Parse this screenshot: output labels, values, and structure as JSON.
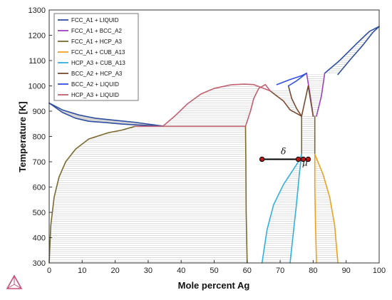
{
  "chart_data": {
    "type": "line",
    "xlabel": "Mole percent Ag",
    "ylabel": "Temperature [K]",
    "xlim": [
      0,
      100
    ],
    "ylim": [
      300,
      1300
    ],
    "x_ticks": [
      0,
      10,
      20,
      30,
      40,
      50,
      60,
      70,
      80,
      90,
      100
    ],
    "y_ticks": [
      300,
      400,
      500,
      600,
      700,
      800,
      900,
      1000,
      1100,
      1200,
      1300
    ],
    "legend_position": "top-left",
    "series": [
      {
        "name": "FCC_A1 + LIQUID",
        "color": "#2f4fa0",
        "segments": [
          [
            [
              0,
              932
            ],
            [
              4,
              905
            ],
            [
              9,
              885
            ],
            [
              14,
              872
            ],
            [
              20,
              864
            ],
            [
              26,
              856
            ],
            [
              34.5,
              841
            ]
          ],
          [
            [
              0,
              932
            ],
            [
              4,
              895
            ],
            [
              8,
              872
            ],
            [
              12,
              860
            ],
            [
              17,
              855
            ],
            [
              22,
              849
            ],
            [
              26,
              846
            ],
            [
              34.5,
              841
            ]
          ],
          [
            [
              87.5,
              1045
            ],
            [
              91,
              1100
            ],
            [
              95,
              1160
            ],
            [
              98,
              1210
            ],
            [
              100,
              1235
            ]
          ],
          [
            [
              83.5,
              1050
            ],
            [
              88,
              1100
            ],
            [
              93,
              1165
            ],
            [
              97,
              1215
            ],
            [
              100,
              1235
            ]
          ]
        ]
      },
      {
        "name": "FCC_A1 + BCC_A2",
        "color": "#a040c0",
        "segments": [
          [
            [
              78,
              1050
            ],
            [
              79,
              970
            ],
            [
              80,
              880
            ]
          ],
          [
            [
              83.5,
              1050
            ],
            [
              82.5,
              960
            ],
            [
              81,
              880
            ]
          ]
        ]
      },
      {
        "name": "FCC_A1 + HCP_A3",
        "color": "#7a6a30",
        "segments": [
          [
            [
              0,
              300
            ],
            [
              0.5,
              450
            ],
            [
              1.5,
              560
            ],
            [
              3,
              640
            ],
            [
              5,
              700
            ],
            [
              8,
              750
            ],
            [
              12,
              790
            ],
            [
              18,
              815
            ],
            [
              22,
              825
            ],
            [
              26,
              840
            ]
          ],
          [
            [
              59.5,
              840
            ],
            [
              59.6,
              700
            ],
            [
              59.7,
              500
            ],
            [
              60,
              300
            ]
          ],
          [
            [
              76.5,
              880
            ],
            [
              76.5,
              760
            ],
            [
              76.5,
              730
            ]
          ],
          [
            [
              80.5,
              880
            ],
            [
              80.5,
              760
            ],
            [
              80.5,
              730
            ]
          ]
        ]
      },
      {
        "name": "FCC_A1 + CUB_A13",
        "color": "#f0a020",
        "segments": [
          [
            [
              80.5,
              730
            ],
            [
              80.5,
              600
            ],
            [
              80.7,
              450
            ],
            [
              81,
              300
            ]
          ],
          [
            [
              80.5,
              730
            ],
            [
              83,
              650
            ],
            [
              85,
              560
            ],
            [
              86.5,
              450
            ],
            [
              87.5,
              300
            ]
          ]
        ]
      },
      {
        "name": "HCP_A3 + CUB_A13",
        "color": "#30b0e0",
        "segments": [
          [
            [
              64.5,
              300
            ],
            [
              66,
              430
            ],
            [
              68,
              530
            ],
            [
              71,
              610
            ],
            [
              74,
              670
            ],
            [
              76,
              710
            ],
            [
              76.5,
              730
            ]
          ],
          [
            [
              73,
              300
            ],
            [
              74,
              420
            ],
            [
              75,
              540
            ],
            [
              75.8,
              650
            ],
            [
              76.5,
              730
            ]
          ]
        ]
      },
      {
        "name": "BCC_A2 + HCP_A3",
        "color": "#7a4a30",
        "segments": [
          [
            [
              67,
              980
            ],
            [
              69,
              960
            ],
            [
              71,
              940
            ],
            [
              73,
              905
            ],
            [
              76.5,
              880
            ]
          ],
          [
            [
              72.5,
              1000
            ],
            [
              73.5,
              950
            ],
            [
              75,
              910
            ],
            [
              76.5,
              880
            ]
          ],
          [
            [
              76.5,
              880
            ],
            [
              78.5,
              1000
            ],
            [
              80,
              880
            ]
          ]
        ]
      },
      {
        "name": "BCC_A2 + LIQUID",
        "color": "#3050e0",
        "segments": [
          [
            [
              72.5,
              1000
            ],
            [
              75,
              1020
            ],
            [
              78,
              1050
            ]
          ],
          [
            [
              69,
              1005
            ],
            [
              73,
              1025
            ],
            [
              76.5,
              1040
            ],
            [
              78,
              1050
            ]
          ]
        ]
      },
      {
        "name": "HCP_A3 + LIQUID",
        "color": "#c06070",
        "segments": [
          [
            [
              26,
              840
            ],
            [
              59.5,
              840
            ]
          ],
          [
            [
              34.5,
              841
            ],
            [
              38,
              880
            ],
            [
              42,
              930
            ],
            [
              46,
              968
            ],
            [
              50,
              990
            ],
            [
              55,
              1004
            ],
            [
              59,
              1007
            ],
            [
              62,
              1005
            ],
            [
              67,
              980
            ]
          ],
          [
            [
              59.5,
              840
            ],
            [
              61,
              900
            ],
            [
              62,
              950
            ],
            [
              63.5,
              990
            ],
            [
              65.5,
              1005
            ],
            [
              67,
              980
            ]
          ]
        ]
      }
    ],
    "tie_line": {
      "x": [
        64.5,
        75.5
      ],
      "y": 710,
      "points": [
        64.5,
        75.5,
        77,
        78.5
      ]
    },
    "annotations": {
      "delta": "δ",
      "mu": "μ"
    },
    "delta_pos": [
      71,
      730
    ],
    "mu_pos": [
      77.5,
      685
    ],
    "grid": false,
    "hatching": "horizontal tie-lines inside two-phase regions"
  }
}
